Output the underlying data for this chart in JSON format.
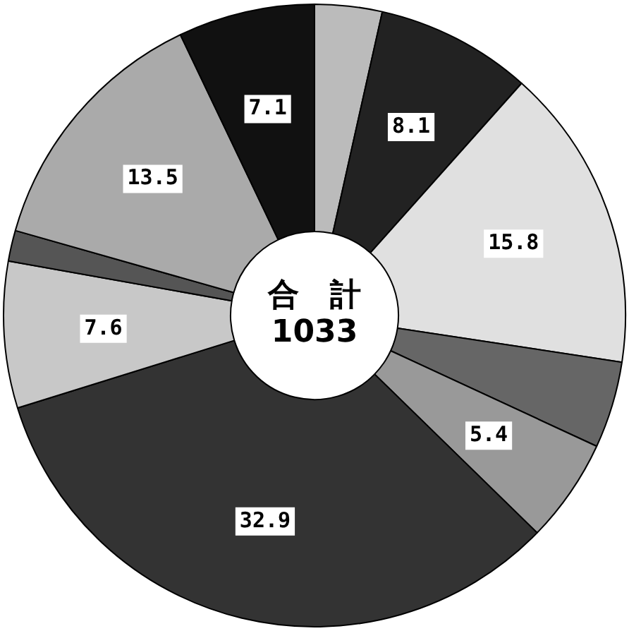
{
  "chart_data": {
    "type": "donut",
    "categories": [
      null,
      null,
      null,
      null,
      null,
      null,
      null,
      null,
      null,
      null
    ],
    "values": [
      3.5,
      8.1,
      15.8,
      4.5,
      5.4,
      32.9,
      7.6,
      1.6,
      13.5,
      7.1
    ],
    "value_labels": [
      null,
      "8.1",
      "15.8",
      null,
      "5.4",
      "32.9",
      "7.6",
      null,
      "13.5",
      "7.1"
    ],
    "colors": [
      "#bbbbbb",
      "#222222",
      "#e0e0e0",
      "#666666",
      "#999999",
      "#333333",
      "#c8c8c8",
      "#555555",
      "#aaaaaa",
      "#111111"
    ],
    "annotations": [
      "合　計",
      "1033"
    ],
    "legend": false
  }
}
